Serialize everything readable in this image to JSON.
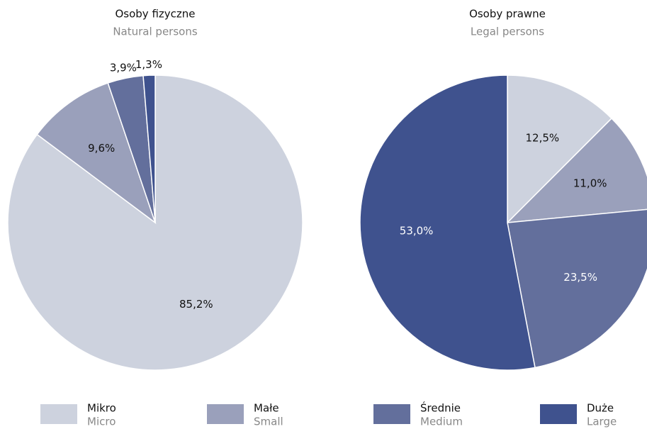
{
  "legend": [
    {
      "name": "Mikro",
      "subtitle": "Micro",
      "color": "#cdd2de"
    },
    {
      "name": "Małe",
      "subtitle": "Small",
      "color": "#9aa0bb"
    },
    {
      "name": "Średnie",
      "subtitle": "Medium",
      "color": "#636f9c"
    },
    {
      "name": "Duże",
      "subtitle": "Large",
      "color": "#3f528e"
    }
  ],
  "chart_data": [
    {
      "type": "pie",
      "title": "Osoby fizyczne",
      "subtitle": "Natural persons",
      "values": [
        85.2,
        9.6,
        3.9,
        1.3
      ],
      "value_labels": [
        "85,2%",
        "9,6%",
        "3,9%",
        "1,3%"
      ]
    },
    {
      "type": "pie",
      "title": "Osoby prawne",
      "subtitle": "Legal persons",
      "values": [
        12.5,
        11.0,
        23.5,
        53.0
      ],
      "value_labels": [
        "12,5%",
        "11,0%",
        "23,5%",
        "53,0%"
      ]
    }
  ]
}
